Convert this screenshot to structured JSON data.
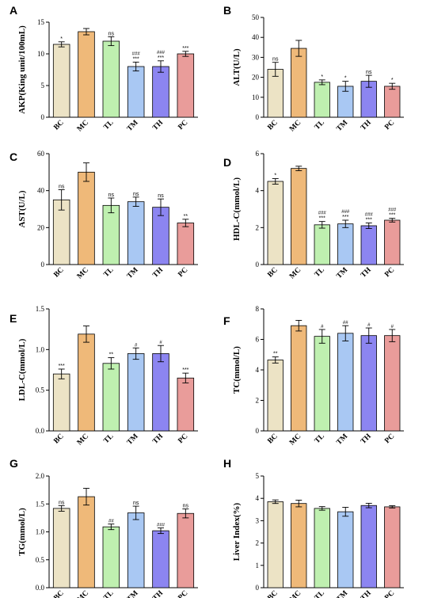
{
  "chart_data": [
    {
      "type": "bar",
      "panel": "A",
      "ylabel": "AKP(King unit/100mL)",
      "categories": [
        "BC",
        "MC",
        "TL",
        "TM",
        "TH",
        "PC"
      ],
      "values": [
        11.5,
        13.5,
        12.0,
        8.0,
        8.0,
        10.0
      ],
      "errors": [
        0.4,
        0.5,
        0.7,
        0.7,
        0.9,
        0.4
      ],
      "sig_star": [
        "*",
        "",
        "ns",
        "***",
        "***",
        "***"
      ],
      "sig_hash": [
        "",
        "",
        "",
        "###",
        "###",
        ""
      ],
      "ylim": [
        0,
        15
      ],
      "yticks": [
        0,
        5,
        10,
        15
      ],
      "colors": [
        "#ece3c5",
        "#efb979",
        "#bff0b0",
        "#a9c8f3",
        "#8c85f1",
        "#e99c9a"
      ]
    },
    {
      "type": "bar",
      "panel": "B",
      "ylabel": "ALT(U/L)",
      "categories": [
        "BC",
        "MC",
        "TL",
        "TM",
        "TH",
        "PC"
      ],
      "values": [
        24,
        34.5,
        17.5,
        15.5,
        18,
        15.5
      ],
      "errors": [
        3.5,
        4.0,
        1.2,
        2.5,
        3.0,
        1.5
      ],
      "sig_star": [
        "ns",
        "",
        "*",
        "*",
        "ns",
        "*"
      ],
      "sig_hash": [
        "",
        "",
        "",
        "",
        "",
        ""
      ],
      "ylim": [
        0,
        50
      ],
      "yticks": [
        0,
        10,
        20,
        30,
        40,
        50
      ],
      "colors": [
        "#ece3c5",
        "#efb979",
        "#bff0b0",
        "#a9c8f3",
        "#8c85f1",
        "#e99c9a"
      ]
    },
    {
      "type": "bar",
      "panel": "C",
      "ylabel": "AST(U/L)",
      "categories": [
        "BC",
        "MC",
        "TL",
        "TM",
        "TH",
        "PC"
      ],
      "values": [
        35,
        50,
        32,
        34,
        31,
        22.5
      ],
      "errors": [
        5.5,
        5.0,
        4.0,
        2.5,
        4.5,
        2.0
      ],
      "sig_star": [
        "ns",
        "",
        "ns",
        "ns",
        "ns",
        "**"
      ],
      "sig_hash": [
        "",
        "",
        "",
        "",
        "",
        ""
      ],
      "ylim": [
        0,
        60
      ],
      "yticks": [
        0,
        20,
        40,
        60
      ],
      "colors": [
        "#ece3c5",
        "#efb979",
        "#bff0b0",
        "#a9c8f3",
        "#8c85f1",
        "#e99c9a"
      ]
    },
    {
      "type": "bar",
      "panel": "D",
      "ylabel": "HDL-C(mmol/L)",
      "categories": [
        "BC",
        "MC",
        "TL",
        "TM",
        "TH",
        "PC"
      ],
      "values": [
        4.5,
        5.2,
        2.15,
        2.2,
        2.1,
        2.4
      ],
      "errors": [
        0.15,
        0.12,
        0.18,
        0.2,
        0.15,
        0.1
      ],
      "sig_star": [
        "*",
        "",
        "***",
        "***",
        "***",
        "***"
      ],
      "sig_hash": [
        "",
        "",
        "###",
        "###",
        "###",
        "###"
      ],
      "ylim": [
        0,
        6
      ],
      "yticks": [
        0,
        2,
        4,
        6
      ],
      "colors": [
        "#ece3c5",
        "#efb979",
        "#bff0b0",
        "#a9c8f3",
        "#8c85f1",
        "#e99c9a"
      ]
    },
    {
      "type": "bar",
      "panel": "E",
      "ylabel": "LDL-C(mmol/L)",
      "categories": [
        "BC",
        "MC",
        "TL",
        "TM",
        "TH",
        "PC"
      ],
      "values": [
        0.7,
        1.19,
        0.83,
        0.95,
        0.95,
        0.65
      ],
      "errors": [
        0.06,
        0.1,
        0.07,
        0.07,
        0.1,
        0.06
      ],
      "sig_star": [
        "***",
        "",
        "**",
        "",
        "",
        "***"
      ],
      "sig_hash": [
        "",
        "",
        "",
        "#",
        "#",
        ""
      ],
      "ylim": [
        0,
        1.5
      ],
      "yticks": [
        0,
        0.5,
        1.0,
        1.5
      ],
      "ytick_labels": [
        "0.0",
        "0.5",
        "1.0",
        "1.5"
      ],
      "colors": [
        "#ece3c5",
        "#efb979",
        "#bff0b0",
        "#a9c8f3",
        "#8c85f1",
        "#e99c9a"
      ]
    },
    {
      "type": "bar",
      "panel": "F",
      "ylabel": "TC(mmol/L)",
      "categories": [
        "BC",
        "MC",
        "TL",
        "TM",
        "TH",
        "PC"
      ],
      "values": [
        4.65,
        6.9,
        6.2,
        6.4,
        6.25,
        6.25
      ],
      "errors": [
        0.2,
        0.35,
        0.45,
        0.5,
        0.5,
        0.4
      ],
      "sig_star": [
        "**",
        "",
        "",
        "",
        "",
        ""
      ],
      "sig_hash": [
        "",
        "",
        "#",
        "##",
        "#",
        "#"
      ],
      "ylim": [
        0,
        8
      ],
      "yticks": [
        0,
        2,
        4,
        6,
        8
      ],
      "colors": [
        "#ece3c5",
        "#efb979",
        "#bff0b0",
        "#a9c8f3",
        "#8c85f1",
        "#e99c9a"
      ]
    },
    {
      "type": "bar",
      "panel": "G",
      "ylabel": "TG(mmol/L)",
      "categories": [
        "BC",
        "MC",
        "TL",
        "TM",
        "TH",
        "PC"
      ],
      "values": [
        1.42,
        1.63,
        1.09,
        1.34,
        1.02,
        1.33
      ],
      "errors": [
        0.05,
        0.15,
        0.05,
        0.12,
        0.05,
        0.08
      ],
      "sig_star": [
        "ns",
        "",
        "",
        "ns",
        "",
        "ns"
      ],
      "sig_hash": [
        "",
        "",
        "##",
        "",
        "###",
        ""
      ],
      "ylim": [
        0,
        2.0
      ],
      "yticks": [
        0,
        0.5,
        1.0,
        1.5,
        2.0
      ],
      "ytick_labels": [
        "0.0",
        "0.5",
        "1.0",
        "1.5",
        "2.0"
      ],
      "colors": [
        "#ece3c5",
        "#efb979",
        "#bff0b0",
        "#a9c8f3",
        "#8c85f1",
        "#e99c9a"
      ]
    },
    {
      "type": "bar",
      "panel": "H",
      "ylabel": "Liver Index(%)",
      "categories": [
        "BC",
        "MC",
        "TL",
        "TM",
        "TH",
        "PC"
      ],
      "values": [
        3.85,
        3.77,
        3.55,
        3.4,
        3.68,
        3.62
      ],
      "errors": [
        0.08,
        0.15,
        0.08,
        0.2,
        0.1,
        0.05
      ],
      "sig_star": [
        "",
        "",
        "",
        "",
        "",
        ""
      ],
      "sig_hash": [
        "",
        "",
        "",
        "",
        "",
        ""
      ],
      "ylim": [
        0,
        5
      ],
      "yticks": [
        0,
        1,
        2,
        3,
        4,
        5
      ],
      "colors": [
        "#ece3c5",
        "#efb979",
        "#bff0b0",
        "#a9c8f3",
        "#8c85f1",
        "#e99c9a"
      ]
    }
  ]
}
